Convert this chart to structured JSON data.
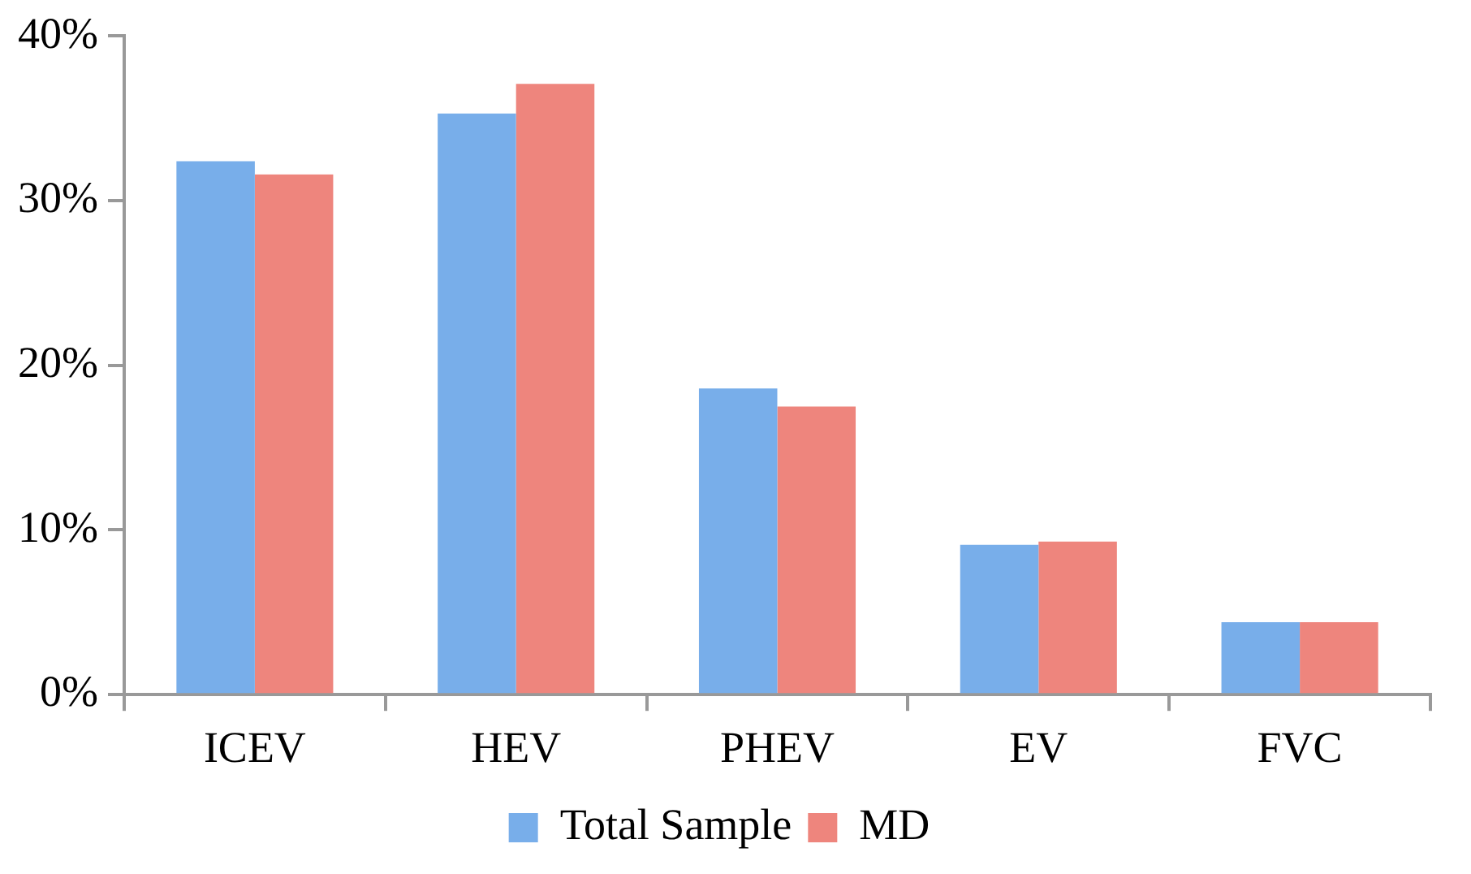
{
  "chart_data": {
    "type": "bar",
    "categories": [
      "ICEV",
      "HEV",
      "PHEV",
      "EV",
      "FVC"
    ],
    "series": [
      {
        "name": "Total Sample",
        "color": "#78aeea",
        "values": [
          32.4,
          35.3,
          18.6,
          9.1,
          4.4
        ]
      },
      {
        "name": "MD",
        "color": "#ee857d",
        "values": [
          31.6,
          37.1,
          17.5,
          9.3,
          4.4
        ]
      }
    ],
    "ylim": [
      0,
      40
    ],
    "yticks": [
      {
        "value": 0,
        "label": "0%"
      },
      {
        "value": 10,
        "label": "10%"
      },
      {
        "value": 20,
        "label": "20%"
      },
      {
        "value": 30,
        "label": "30%"
      },
      {
        "value": 40,
        "label": "40%"
      }
    ],
    "grid": false,
    "legend": "bottom"
  }
}
